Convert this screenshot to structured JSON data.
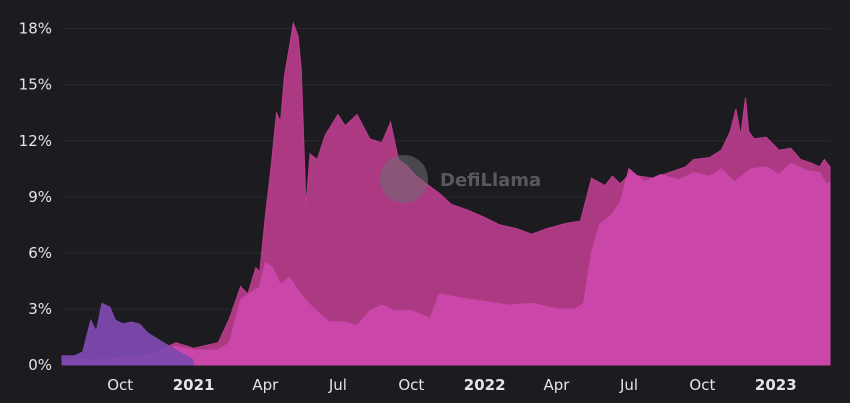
{
  "watermark": "DefiLlama",
  "chart_data": {
    "type": "area",
    "title": "",
    "xlabel": "",
    "ylabel": "",
    "grid": true,
    "legend": "none",
    "y_tick_labels": [
      "0%",
      "3%",
      "6%",
      "9%",
      "12%",
      "15%",
      "18%"
    ],
    "y_tick_values": [
      0,
      3,
      6,
      9,
      12,
      15,
      18
    ],
    "ylim": [
      0,
      19
    ],
    "xlim": [
      "2020-07-20",
      "2023-03-10"
    ],
    "x_ticks": [
      {
        "date": "2020-10-01",
        "label": "Oct",
        "bold": false
      },
      {
        "date": "2021-01-01",
        "label": "2021",
        "bold": true
      },
      {
        "date": "2021-04-01",
        "label": "Apr",
        "bold": false
      },
      {
        "date": "2021-07-01",
        "label": "Jul",
        "bold": false
      },
      {
        "date": "2021-10-01",
        "label": "Oct",
        "bold": false
      },
      {
        "date": "2022-01-01",
        "label": "2022",
        "bold": true
      },
      {
        "date": "2022-04-01",
        "label": "Apr",
        "bold": false
      },
      {
        "date": "2022-07-01",
        "label": "Jul",
        "bold": false
      },
      {
        "date": "2022-10-01",
        "label": "Oct",
        "bold": false
      },
      {
        "date": "2023-01-01",
        "label": "2023",
        "bold": true
      }
    ],
    "series": [
      {
        "color": "#b93d8c",
        "points": [
          [
            "2020-07-20",
            0.3
          ],
          [
            "2020-09-15",
            0.3
          ],
          [
            "2020-11-01",
            0.4
          ],
          [
            "2020-11-20",
            0.8
          ],
          [
            "2020-12-10",
            1.2
          ],
          [
            "2021-01-01",
            0.9
          ],
          [
            "2021-02-01",
            1.2
          ],
          [
            "2021-02-15",
            2.5
          ],
          [
            "2021-03-01",
            4.2
          ],
          [
            "2021-03-10",
            3.8
          ],
          [
            "2021-03-20",
            5.2
          ],
          [
            "2021-03-25",
            5.0
          ],
          [
            "2021-04-01",
            8.0
          ],
          [
            "2021-04-08",
            10.5
          ],
          [
            "2021-04-15",
            13.5
          ],
          [
            "2021-04-20",
            13.0
          ],
          [
            "2021-04-25",
            15.5
          ],
          [
            "2021-05-01",
            17.0
          ],
          [
            "2021-05-06",
            18.3
          ],
          [
            "2021-05-12",
            17.6
          ],
          [
            "2021-05-16",
            15.8
          ],
          [
            "2021-05-22",
            8.5
          ],
          [
            "2021-05-27",
            11.3
          ],
          [
            "2021-06-05",
            11.0
          ],
          [
            "2021-06-15",
            12.3
          ],
          [
            "2021-07-01",
            13.4
          ],
          [
            "2021-07-10",
            12.8
          ],
          [
            "2021-07-25",
            13.4
          ],
          [
            "2021-08-10",
            12.1
          ],
          [
            "2021-08-25",
            11.9
          ],
          [
            "2021-09-05",
            13.0
          ],
          [
            "2021-09-15",
            11.0
          ],
          [
            "2021-09-25",
            10.7
          ],
          [
            "2021-10-05",
            10.2
          ],
          [
            "2021-10-20",
            9.7
          ],
          [
            "2021-11-05",
            9.2
          ],
          [
            "2021-11-20",
            8.6
          ],
          [
            "2021-12-10",
            8.3
          ],
          [
            "2022-01-01",
            7.9
          ],
          [
            "2022-01-20",
            7.5
          ],
          [
            "2022-02-10",
            7.3
          ],
          [
            "2022-03-01",
            7.0
          ],
          [
            "2022-03-20",
            7.3
          ],
          [
            "2022-04-15",
            7.6
          ],
          [
            "2022-05-01",
            7.7
          ],
          [
            "2022-05-15",
            10.0
          ],
          [
            "2022-06-01",
            9.6
          ],
          [
            "2022-06-10",
            10.1
          ],
          [
            "2022-06-20",
            9.7
          ],
          [
            "2022-07-01",
            10.2
          ],
          [
            "2022-07-15",
            10.1
          ],
          [
            "2022-08-01",
            10.0
          ],
          [
            "2022-08-20",
            10.3
          ],
          [
            "2022-09-10",
            10.6
          ],
          [
            "2022-09-20",
            11.0
          ],
          [
            "2022-10-10",
            11.1
          ],
          [
            "2022-10-25",
            11.5
          ],
          [
            "2022-11-05",
            12.5
          ],
          [
            "2022-11-12",
            13.7
          ],
          [
            "2022-11-18",
            12.3
          ],
          [
            "2022-11-24",
            14.3
          ],
          [
            "2022-11-28",
            12.5
          ],
          [
            "2022-12-05",
            12.1
          ],
          [
            "2022-12-20",
            12.2
          ],
          [
            "2023-01-05",
            11.5
          ],
          [
            "2023-01-20",
            11.6
          ],
          [
            "2023-02-01",
            11.0
          ],
          [
            "2023-02-15",
            10.8
          ],
          [
            "2023-02-25",
            10.6
          ],
          [
            "2023-03-03",
            11.0
          ],
          [
            "2023-03-10",
            10.6
          ]
        ]
      },
      {
        "color": "#cc47ab",
        "points": [
          [
            "2020-07-20",
            0.2
          ],
          [
            "2020-09-15",
            0.3
          ],
          [
            "2020-11-01",
            0.5
          ],
          [
            "2020-11-20",
            0.7
          ],
          [
            "2020-12-10",
            1.0
          ],
          [
            "2021-01-01",
            0.8
          ],
          [
            "2021-02-01",
            0.8
          ],
          [
            "2021-02-15",
            1.2
          ],
          [
            "2021-03-01",
            3.5
          ],
          [
            "2021-03-15",
            3.9
          ],
          [
            "2021-03-25",
            4.2
          ],
          [
            "2021-04-01",
            5.5
          ],
          [
            "2021-04-10",
            5.2
          ],
          [
            "2021-04-20",
            4.3
          ],
          [
            "2021-05-01",
            4.7
          ],
          [
            "2021-05-15",
            3.8
          ],
          [
            "2021-06-01",
            3.0
          ],
          [
            "2021-06-20",
            2.3
          ],
          [
            "2021-07-10",
            2.3
          ],
          [
            "2021-07-25",
            2.1
          ],
          [
            "2021-08-10",
            2.9
          ],
          [
            "2021-08-25",
            3.2
          ],
          [
            "2021-09-10",
            2.9
          ],
          [
            "2021-10-01",
            2.9
          ],
          [
            "2021-10-25",
            2.5
          ],
          [
            "2021-11-05",
            3.8
          ],
          [
            "2021-12-01",
            3.6
          ],
          [
            "2022-01-01",
            3.4
          ],
          [
            "2022-02-01",
            3.2
          ],
          [
            "2022-03-01",
            3.3
          ],
          [
            "2022-04-01",
            3.0
          ],
          [
            "2022-04-25",
            3.0
          ],
          [
            "2022-05-05",
            3.3
          ],
          [
            "2022-05-15",
            6.0
          ],
          [
            "2022-05-25",
            7.5
          ],
          [
            "2022-06-10",
            8.1
          ],
          [
            "2022-06-20",
            8.7
          ],
          [
            "2022-07-01",
            10.5
          ],
          [
            "2022-07-20",
            9.8
          ],
          [
            "2022-08-10",
            10.2
          ],
          [
            "2022-09-01",
            9.9
          ],
          [
            "2022-09-20",
            10.3
          ],
          [
            "2022-10-10",
            10.1
          ],
          [
            "2022-10-25",
            10.5
          ],
          [
            "2022-11-10",
            9.8
          ],
          [
            "2022-12-01",
            10.5
          ],
          [
            "2022-12-20",
            10.6
          ],
          [
            "2023-01-05",
            10.2
          ],
          [
            "2023-01-20",
            10.8
          ],
          [
            "2023-02-10",
            10.4
          ],
          [
            "2023-02-25",
            10.3
          ],
          [
            "2023-03-05",
            9.7
          ],
          [
            "2023-03-10",
            9.8
          ]
        ]
      },
      {
        "color": "#7d49ae",
        "points": [
          [
            "2020-07-20",
            0.5
          ],
          [
            "2020-08-05",
            0.5
          ],
          [
            "2020-08-15",
            0.7
          ],
          [
            "2020-08-25",
            2.4
          ],
          [
            "2020-09-01",
            1.8
          ],
          [
            "2020-09-08",
            3.3
          ],
          [
            "2020-09-18",
            3.1
          ],
          [
            "2020-09-25",
            2.4
          ],
          [
            "2020-10-05",
            2.2
          ],
          [
            "2020-10-15",
            2.3
          ],
          [
            "2020-10-25",
            2.2
          ],
          [
            "2020-11-05",
            1.7
          ],
          [
            "2020-11-20",
            1.3
          ],
          [
            "2020-12-10",
            0.8
          ],
          [
            "2020-12-31",
            0.3
          ],
          [
            "2021-01-01",
            0.0
          ]
        ]
      }
    ]
  }
}
